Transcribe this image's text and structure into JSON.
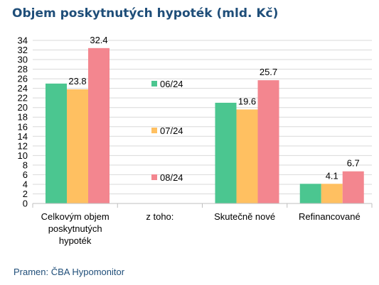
{
  "chart_data": {
    "type": "bar",
    "title": "Objem poskytnutých hypoték (mld. Kč)",
    "source": "Pramen: ČBA Hypomonitor",
    "categories": [
      [
        "Celkovým objem",
        "poskytnutých",
        "hypoték"
      ],
      [
        "z toho:"
      ],
      [
        "Skutečně nové"
      ],
      [
        "Refinancované"
      ]
    ],
    "series": [
      {
        "name": "06/24",
        "color": "#4BC690",
        "values": [
          25.0,
          null,
          21.0,
          4.1
        ],
        "labels": [
          "",
          "",
          "",
          ""
        ]
      },
      {
        "name": "07/24",
        "color": "#FFC061",
        "values": [
          23.8,
          null,
          19.6,
          4.1
        ],
        "labels": [
          "23.8",
          "",
          "19.6",
          "4.1"
        ]
      },
      {
        "name": "08/24",
        "color": "#F3868F",
        "values": [
          32.4,
          null,
          25.7,
          6.7
        ],
        "labels": [
          "32.4",
          "",
          "25.7",
          "6.7"
        ]
      }
    ],
    "ylim": [
      0,
      34
    ],
    "yticks": [
      0,
      2,
      4,
      6,
      8,
      10,
      12,
      14,
      16,
      18,
      20,
      22,
      24,
      26,
      28,
      30,
      32,
      34
    ],
    "grid": true,
    "legend_position": "inside-center"
  }
}
